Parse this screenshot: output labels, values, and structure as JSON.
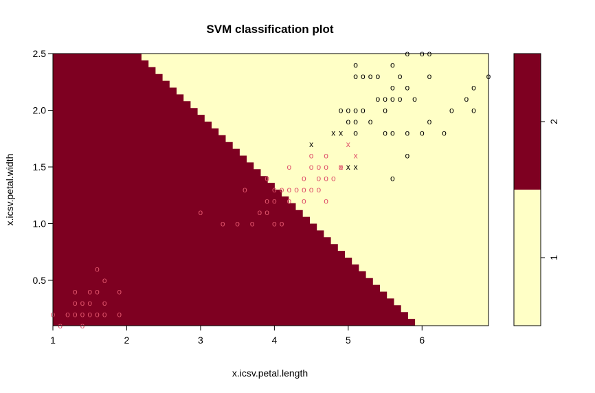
{
  "chart_data": {
    "type": "scatter",
    "title": "SVM classification plot",
    "xlabel": "x.icsv.petal.length",
    "ylabel": "x.icsv.petal.width",
    "xlim": [
      1,
      6.9
    ],
    "ylim": [
      0.1,
      2.5
    ],
    "x_ticks": [
      "1",
      "2",
      "3",
      "4",
      "5",
      "6"
    ],
    "y_ticks": [
      "0.5",
      "1.0",
      "1.5",
      "2.0",
      "2.5"
    ],
    "grid": false,
    "colors": {
      "region_class_2": "#7E0021",
      "region_class_1": "#FFFFC6",
      "points_class_2": "#DF536B",
      "points_class_1": "#000000"
    },
    "decision_boundary": [
      [
        2.2,
        2.5
      ],
      [
        6.0,
        0.1
      ]
    ],
    "legend": {
      "placement": "right",
      "levels": [
        {
          "label": "2",
          "color": "#7E0021"
        },
        {
          "label": "1",
          "color": "#FFFFC6"
        }
      ]
    },
    "series": [
      {
        "marker": "o",
        "color": "#DF536B",
        "points": [
          [
            1.0,
            0.2
          ],
          [
            1.1,
            0.1
          ],
          [
            1.2,
            0.2
          ],
          [
            1.3,
            0.2
          ],
          [
            1.4,
            0.2
          ],
          [
            1.4,
            0.1
          ],
          [
            1.5,
            0.2
          ],
          [
            1.6,
            0.2
          ],
          [
            1.7,
            0.2
          ],
          [
            1.9,
            0.2
          ],
          [
            1.3,
            0.3
          ],
          [
            1.4,
            0.3
          ],
          [
            1.5,
            0.3
          ],
          [
            1.7,
            0.3
          ],
          [
            1.3,
            0.4
          ],
          [
            1.5,
            0.4
          ],
          [
            1.6,
            0.4
          ],
          [
            1.9,
            0.4
          ],
          [
            1.7,
            0.5
          ],
          [
            1.6,
            0.6
          ],
          [
            3.0,
            1.1
          ],
          [
            3.3,
            1.0
          ],
          [
            3.5,
            1.0
          ],
          [
            3.7,
            1.0
          ],
          [
            4.0,
            1.0
          ],
          [
            4.1,
            1.0
          ],
          [
            3.8,
            1.1
          ],
          [
            3.9,
            1.1
          ],
          [
            3.9,
            1.2
          ],
          [
            4.0,
            1.2
          ],
          [
            4.2,
            1.2
          ],
          [
            4.4,
            1.2
          ],
          [
            4.7,
            1.2
          ],
          [
            3.6,
            1.3
          ],
          [
            4.0,
            1.3
          ],
          [
            4.1,
            1.3
          ],
          [
            4.2,
            1.3
          ],
          [
            4.3,
            1.3
          ],
          [
            4.4,
            1.3
          ],
          [
            4.5,
            1.3
          ],
          [
            4.6,
            1.3
          ],
          [
            3.9,
            1.4
          ],
          [
            4.4,
            1.4
          ],
          [
            4.6,
            1.4
          ],
          [
            4.7,
            1.4
          ],
          [
            4.8,
            1.4
          ],
          [
            4.2,
            1.5
          ],
          [
            4.5,
            1.5
          ],
          [
            4.6,
            1.5
          ],
          [
            4.7,
            1.5
          ],
          [
            4.9,
            1.5
          ],
          [
            4.5,
            1.6
          ],
          [
            4.7,
            1.6
          ]
        ]
      },
      {
        "marker": "x",
        "color": "#DF536B",
        "points": [
          [
            4.9,
            1.5
          ],
          [
            5.0,
            1.7
          ],
          [
            5.1,
            1.6
          ]
        ]
      },
      {
        "marker": "o",
        "color": "#000000",
        "points": [
          [
            5.6,
            1.4
          ],
          [
            5.8,
            1.6
          ],
          [
            5.1,
            1.8
          ],
          [
            5.5,
            1.8
          ],
          [
            5.6,
            1.8
          ],
          [
            5.8,
            1.8
          ],
          [
            6.0,
            1.8
          ],
          [
            6.3,
            1.8
          ],
          [
            5.0,
            1.9
          ],
          [
            5.1,
            1.9
          ],
          [
            5.3,
            1.9
          ],
          [
            6.1,
            1.9
          ],
          [
            4.9,
            2.0
          ],
          [
            5.0,
            2.0
          ],
          [
            5.1,
            2.0
          ],
          [
            5.2,
            2.0
          ],
          [
            5.5,
            2.0
          ],
          [
            6.4,
            2.0
          ],
          [
            6.7,
            2.0
          ],
          [
            5.4,
            2.1
          ],
          [
            5.5,
            2.1
          ],
          [
            5.6,
            2.1
          ],
          [
            5.7,
            2.1
          ],
          [
            5.9,
            2.1
          ],
          [
            6.6,
            2.1
          ],
          [
            5.6,
            2.2
          ],
          [
            5.8,
            2.2
          ],
          [
            6.7,
            2.2
          ],
          [
            5.1,
            2.3
          ],
          [
            5.2,
            2.3
          ],
          [
            5.3,
            2.3
          ],
          [
            5.4,
            2.3
          ],
          [
            5.7,
            2.3
          ],
          [
            6.1,
            2.3
          ],
          [
            6.9,
            2.3
          ],
          [
            5.1,
            2.4
          ],
          [
            5.6,
            2.4
          ],
          [
            5.8,
            2.5
          ],
          [
            6.0,
            2.5
          ],
          [
            6.1,
            2.5
          ]
        ]
      },
      {
        "marker": "x",
        "color": "#000000",
        "points": [
          [
            4.5,
            1.7
          ],
          [
            4.8,
            1.8
          ],
          [
            4.9,
            1.8
          ],
          [
            5.0,
            1.5
          ],
          [
            5.1,
            1.5
          ]
        ]
      }
    ]
  }
}
